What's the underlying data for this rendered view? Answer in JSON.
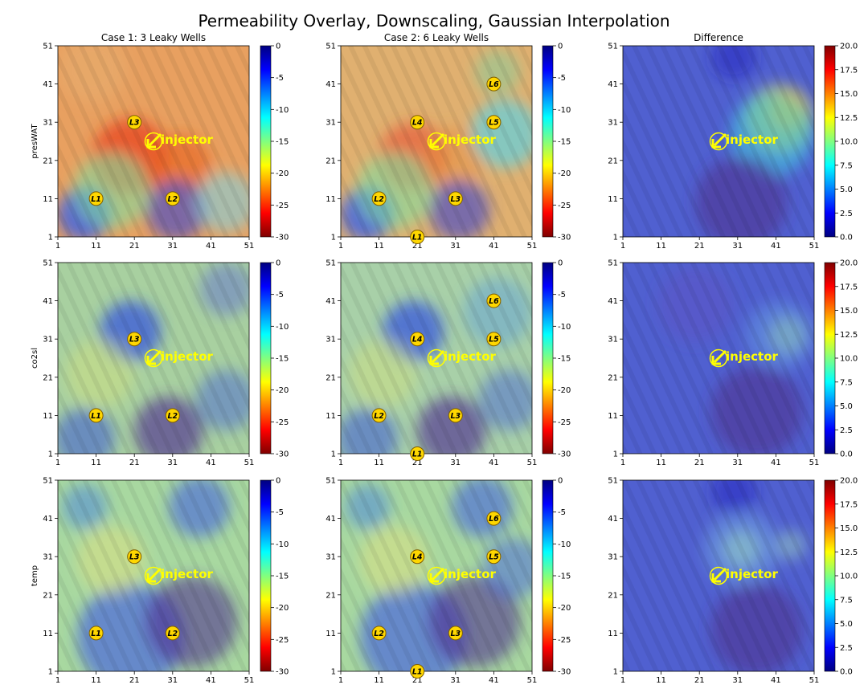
{
  "figure": {
    "title": "Permeability Overlay, Downscaling, Gaussian Interpolation",
    "column_titles": [
      "Case 1: 3 Leaky Wells",
      "Case 2: 6 Leaky Wells",
      "Difference"
    ],
    "row_labels": [
      "presWAT",
      "co2sl",
      "temp"
    ]
  },
  "chart_data": {
    "type": "heatmap",
    "grid_axis": {
      "ticks": [
        1,
        11,
        21,
        31,
        41,
        51
      ],
      "xlim": [
        1,
        51
      ],
      "ylim": [
        1,
        51
      ]
    },
    "colorbars": {
      "case": {
        "range": [
          -30,
          0
        ],
        "ticks": [
          "0",
          "-5",
          "-10",
          "-15",
          "-20",
          "-25",
          "-30"
        ],
        "colors_top_to_bottom": [
          "#000080",
          "#0000ff",
          "#0080ff",
          "#00ffff",
          "#80ff80",
          "#ffff00",
          "#ff8000",
          "#ff0000",
          "#800000"
        ]
      },
      "difference": {
        "range": [
          0,
          20
        ],
        "ticks": [
          "20.0",
          "17.5",
          "15.0",
          "12.5",
          "10.0",
          "7.5",
          "5.0",
          "2.5",
          "0.0"
        ],
        "colors_top_to_bottom": [
          "#800000",
          "#ff0000",
          "#ff8000",
          "#ffff00",
          "#80ff80",
          "#00ffff",
          "#0080ff",
          "#0000ff",
          "#000080"
        ]
      }
    },
    "injector": {
      "label": "injector",
      "x": 26,
      "y": 26
    },
    "wells": {
      "case1": [
        {
          "label": "L1",
          "x": 11,
          "y": 11
        },
        {
          "label": "L2",
          "x": 31,
          "y": 11
        },
        {
          "label": "L3",
          "x": 21,
          "y": 31
        }
      ],
      "case2": [
        {
          "label": "L1",
          "x": 21,
          "y": 1
        },
        {
          "label": "L2",
          "x": 11,
          "y": 11
        },
        {
          "label": "L3",
          "x": 31,
          "y": 11
        },
        {
          "label": "L4",
          "x": 21,
          "y": 31
        },
        {
          "label": "L5",
          "x": 41,
          "y": 31
        },
        {
          "label": "L6",
          "x": 41,
          "y": 41
        }
      ]
    },
    "panels": [
      {
        "row": 0,
        "col": 0,
        "base": "#e8a060",
        "blobs": [
          {
            "x": 20,
            "y": 22,
            "r": 10,
            "c": "#e84020",
            "a": 0.7
          },
          {
            "x": 33,
            "y": 20,
            "r": 8,
            "c": "#e86020",
            "a": 0.6
          },
          {
            "x": 8,
            "y": 7,
            "r": 7,
            "c": "#4060e0",
            "a": 0.85
          },
          {
            "x": 32,
            "y": 8,
            "r": 8,
            "c": "#5050c0",
            "a": 0.7
          },
          {
            "x": 15,
            "y": 13,
            "r": 10,
            "c": "#80e0a0",
            "a": 0.6
          },
          {
            "x": 45,
            "y": 10,
            "r": 8,
            "c": "#80d0e0",
            "a": 0.6
          },
          {
            "x": 10,
            "y": 45,
            "r": 9,
            "c": "#e8b070",
            "a": 0.5
          }
        ]
      },
      {
        "row": 0,
        "col": 1,
        "base": "#e0b070",
        "blobs": [
          {
            "x": 20,
            "y": 22,
            "r": 9,
            "c": "#e85030",
            "a": 0.6
          },
          {
            "x": 31,
            "y": 22,
            "r": 8,
            "c": "#e89040",
            "a": 0.5
          },
          {
            "x": 8,
            "y": 7,
            "r": 7,
            "c": "#4060e0",
            "a": 0.85
          },
          {
            "x": 32,
            "y": 8,
            "r": 8,
            "c": "#5050c0",
            "a": 0.7
          },
          {
            "x": 15,
            "y": 13,
            "r": 10,
            "c": "#80e0a0",
            "a": 0.6
          },
          {
            "x": 44,
            "y": 28,
            "r": 9,
            "c": "#60d0e0",
            "a": 0.7
          },
          {
            "x": 42,
            "y": 44,
            "r": 6,
            "c": "#80d0a0",
            "a": 0.5
          }
        ]
      },
      {
        "row": 0,
        "col": 2,
        "base": "#5060d0",
        "blobs": [
          {
            "x": 44,
            "y": 34,
            "r": 5,
            "c": "#ff8020",
            "a": 0.9
          },
          {
            "x": 42,
            "y": 32,
            "r": 9,
            "c": "#e0e040",
            "a": 0.6
          },
          {
            "x": 40,
            "y": 28,
            "r": 11,
            "c": "#40d0e0",
            "a": 0.55
          },
          {
            "x": 32,
            "y": 10,
            "r": 12,
            "c": "#503090",
            "a": 0.6
          },
          {
            "x": 30,
            "y": 48,
            "r": 6,
            "c": "#2020c0",
            "a": 0.5
          }
        ]
      },
      {
        "row": 1,
        "col": 0,
        "base": "#a8d0a0",
        "blobs": [
          {
            "x": 20,
            "y": 33,
            "r": 8,
            "c": "#3050e0",
            "a": 0.7
          },
          {
            "x": 8,
            "y": 5,
            "r": 8,
            "c": "#4060d0",
            "a": 0.6
          },
          {
            "x": 30,
            "y": 7,
            "r": 9,
            "c": "#503090",
            "a": 0.65
          },
          {
            "x": 45,
            "y": 15,
            "r": 8,
            "c": "#5070d0",
            "a": 0.55
          },
          {
            "x": 45,
            "y": 44,
            "r": 7,
            "c": "#6070d0",
            "a": 0.5
          },
          {
            "x": 12,
            "y": 22,
            "r": 9,
            "c": "#d0e080",
            "a": 0.5
          }
        ]
      },
      {
        "row": 1,
        "col": 1,
        "base": "#a8d0a8",
        "blobs": [
          {
            "x": 20,
            "y": 33,
            "r": 8,
            "c": "#3050e0",
            "a": 0.7
          },
          {
            "x": 8,
            "y": 5,
            "r": 8,
            "c": "#4060d0",
            "a": 0.6
          },
          {
            "x": 30,
            "y": 7,
            "r": 9,
            "c": "#503090",
            "a": 0.65
          },
          {
            "x": 45,
            "y": 15,
            "r": 8,
            "c": "#5070d0",
            "a": 0.55
          },
          {
            "x": 42,
            "y": 38,
            "r": 9,
            "c": "#60a0d8",
            "a": 0.5
          },
          {
            "x": 12,
            "y": 22,
            "r": 9,
            "c": "#d0e080",
            "a": 0.5
          }
        ]
      },
      {
        "row": 1,
        "col": 2,
        "base": "#5060d0",
        "blobs": [
          {
            "x": 44,
            "y": 32,
            "r": 5,
            "c": "#a0d0a0",
            "a": 0.85
          },
          {
            "x": 42,
            "y": 32,
            "r": 9,
            "c": "#6090e0",
            "a": 0.6
          },
          {
            "x": 36,
            "y": 12,
            "r": 12,
            "c": "#503090",
            "a": 0.6
          },
          {
            "x": 20,
            "y": 40,
            "r": 10,
            "c": "#6050c0",
            "a": 0.4
          }
        ]
      },
      {
        "row": 2,
        "col": 0,
        "base": "#a8d8a0",
        "blobs": [
          {
            "x": 38,
            "y": 44,
            "r": 8,
            "c": "#4060e0",
            "a": 0.6
          },
          {
            "x": 8,
            "y": 44,
            "r": 6,
            "c": "#4080e0",
            "a": 0.5
          },
          {
            "x": 20,
            "y": 10,
            "r": 14,
            "c": "#4060e0",
            "a": 0.65
          },
          {
            "x": 36,
            "y": 14,
            "r": 12,
            "c": "#503090",
            "a": 0.6
          },
          {
            "x": 15,
            "y": 30,
            "r": 9,
            "c": "#e0e080",
            "a": 0.5
          }
        ]
      },
      {
        "row": 2,
        "col": 1,
        "base": "#a8d8a0",
        "blobs": [
          {
            "x": 38,
            "y": 44,
            "r": 8,
            "c": "#4060e0",
            "a": 0.6
          },
          {
            "x": 8,
            "y": 44,
            "r": 6,
            "c": "#4080e0",
            "a": 0.5
          },
          {
            "x": 20,
            "y": 10,
            "r": 14,
            "c": "#4060e0",
            "a": 0.65
          },
          {
            "x": 36,
            "y": 14,
            "r": 12,
            "c": "#503090",
            "a": 0.6
          },
          {
            "x": 46,
            "y": 28,
            "r": 8,
            "c": "#4060e0",
            "a": 0.5
          },
          {
            "x": 15,
            "y": 30,
            "r": 9,
            "c": "#e0e080",
            "a": 0.5
          }
        ]
      },
      {
        "row": 2,
        "col": 2,
        "base": "#5060d0",
        "blobs": [
          {
            "x": 32,
            "y": 33,
            "r": 5,
            "c": "#a0d8b0",
            "a": 0.8
          },
          {
            "x": 32,
            "y": 33,
            "r": 10,
            "c": "#70a0e0",
            "a": 0.55
          },
          {
            "x": 45,
            "y": 34,
            "r": 4,
            "c": "#90c0c0",
            "a": 0.6
          },
          {
            "x": 36,
            "y": 12,
            "r": 12,
            "c": "#503090",
            "a": 0.6
          },
          {
            "x": 30,
            "y": 48,
            "r": 6,
            "c": "#2020c0",
            "a": 0.5
          }
        ]
      }
    ]
  }
}
